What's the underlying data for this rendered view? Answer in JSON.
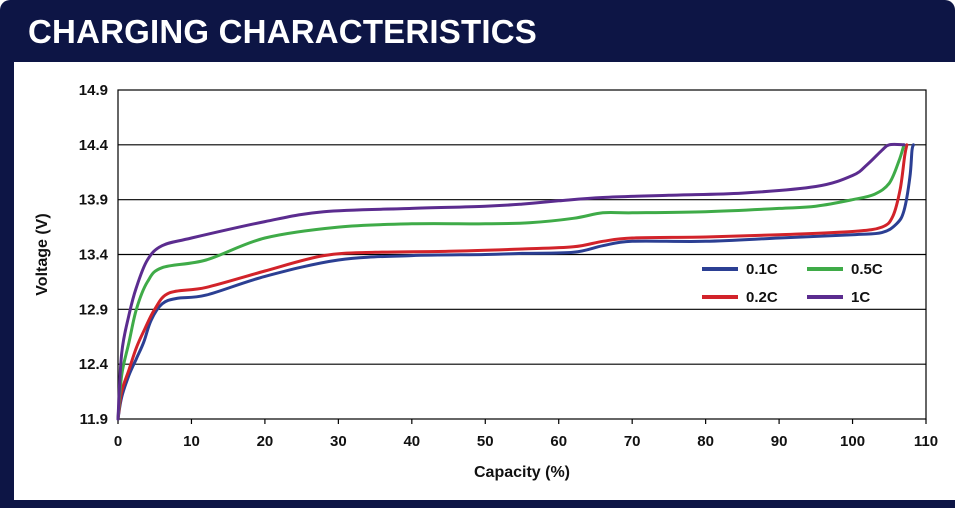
{
  "header": {
    "title": "CHARGING CHARACTERISTICS"
  },
  "colors": {
    "background": "#0d1545",
    "panel": "#ffffff",
    "gridline": "#000000",
    "series_0_1C": "#2b3f93",
    "series_0_2C": "#d2232a",
    "series_0_5C": "#3fab48",
    "series_1C": "#5b2c8f"
  },
  "chart_data": {
    "type": "line",
    "title": "",
    "xlabel": "Capacity (%)",
    "ylabel": "Voltage (V)",
    "xlim": [
      0,
      110
    ],
    "ylim": [
      11.9,
      14.9
    ],
    "xticks": [
      0,
      10,
      20,
      30,
      40,
      50,
      60,
      70,
      80,
      90,
      100,
      110
    ],
    "yticks": [
      11.9,
      12.4,
      12.9,
      13.4,
      13.9,
      14.4,
      14.9
    ],
    "grid": "horizontal",
    "legend_position": "right-middle",
    "series": [
      {
        "name": "0.1C",
        "color": "#2b3f93",
        "points": [
          [
            0,
            11.9
          ],
          [
            0.5,
            12.1
          ],
          [
            1.5,
            12.3
          ],
          [
            2.5,
            12.45
          ],
          [
            3.5,
            12.6
          ],
          [
            4.5,
            12.8
          ],
          [
            6,
            12.95
          ],
          [
            8,
            13.0
          ],
          [
            12,
            13.03
          ],
          [
            20,
            13.2
          ],
          [
            30,
            13.35
          ],
          [
            40,
            13.39
          ],
          [
            50,
            13.4
          ],
          [
            55,
            13.41
          ],
          [
            62,
            13.42
          ],
          [
            66,
            13.48
          ],
          [
            70,
            13.52
          ],
          [
            80,
            13.52
          ],
          [
            90,
            13.55
          ],
          [
            100,
            13.58
          ],
          [
            104,
            13.6
          ],
          [
            106,
            13.68
          ],
          [
            107,
            13.8
          ],
          [
            107.8,
            14.1
          ],
          [
            108.1,
            14.35
          ],
          [
            108.3,
            14.4
          ]
        ]
      },
      {
        "name": "0.2C",
        "color": "#d2232a",
        "points": [
          [
            0,
            11.9
          ],
          [
            0.5,
            12.15
          ],
          [
            1.5,
            12.35
          ],
          [
            2.5,
            12.55
          ],
          [
            3.5,
            12.7
          ],
          [
            5,
            12.9
          ],
          [
            7,
            13.05
          ],
          [
            12,
            13.1
          ],
          [
            20,
            13.25
          ],
          [
            28,
            13.39
          ],
          [
            35,
            13.42
          ],
          [
            45,
            13.43
          ],
          [
            55,
            13.45
          ],
          [
            62,
            13.47
          ],
          [
            66,
            13.52
          ],
          [
            70,
            13.55
          ],
          [
            80,
            13.56
          ],
          [
            90,
            13.58
          ],
          [
            100,
            13.61
          ],
          [
            104,
            13.65
          ],
          [
            105.5,
            13.75
          ],
          [
            106.5,
            14.0
          ],
          [
            107.1,
            14.3
          ],
          [
            107.4,
            14.4
          ]
        ]
      },
      {
        "name": "0.5C",
        "color": "#3fab48",
        "points": [
          [
            0,
            11.9
          ],
          [
            0.5,
            12.3
          ],
          [
            1.5,
            12.6
          ],
          [
            2.5,
            12.9
          ],
          [
            4,
            13.15
          ],
          [
            6,
            13.28
          ],
          [
            12,
            13.35
          ],
          [
            20,
            13.55
          ],
          [
            30,
            13.65
          ],
          [
            40,
            13.68
          ],
          [
            50,
            13.68
          ],
          [
            56,
            13.69
          ],
          [
            62,
            13.73
          ],
          [
            66,
            13.78
          ],
          [
            70,
            13.78
          ],
          [
            80,
            13.79
          ],
          [
            90,
            13.82
          ],
          [
            95,
            13.84
          ],
          [
            100,
            13.9
          ],
          [
            103,
            13.95
          ],
          [
            105,
            14.05
          ],
          [
            106.3,
            14.25
          ],
          [
            107,
            14.4
          ]
        ]
      },
      {
        "name": "1C",
        "color": "#5b2c8f",
        "points": [
          [
            0,
            11.9
          ],
          [
            0.5,
            12.5
          ],
          [
            1.5,
            12.85
          ],
          [
            2.5,
            13.1
          ],
          [
            4,
            13.35
          ],
          [
            6,
            13.48
          ],
          [
            10,
            13.55
          ],
          [
            20,
            13.7
          ],
          [
            28,
            13.79
          ],
          [
            40,
            13.82
          ],
          [
            50,
            13.84
          ],
          [
            55,
            13.86
          ],
          [
            60,
            13.89
          ],
          [
            66,
            13.92
          ],
          [
            75,
            13.94
          ],
          [
            85,
            13.96
          ],
          [
            95,
            14.02
          ],
          [
            100,
            14.12
          ],
          [
            102,
            14.22
          ],
          [
            104,
            14.35
          ],
          [
            105,
            14.4
          ],
          [
            107,
            14.4
          ]
        ]
      }
    ]
  }
}
